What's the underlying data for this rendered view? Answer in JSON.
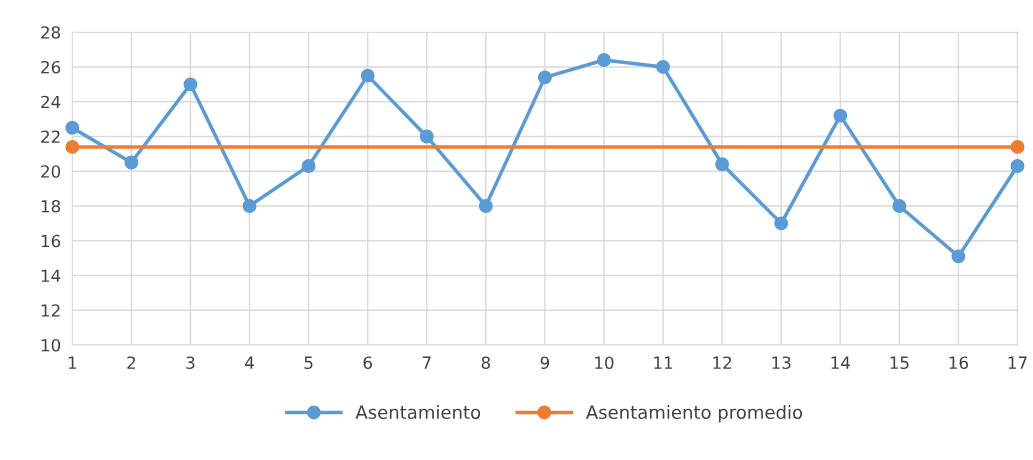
{
  "chart_data": {
    "type": "line",
    "x": [
      1,
      2,
      3,
      4,
      5,
      6,
      7,
      8,
      9,
      10,
      11,
      12,
      13,
      14,
      15,
      16,
      17
    ],
    "series": [
      {
        "name": "Asentamiento",
        "color": "#5b9bd5",
        "values": [
          22.5,
          20.5,
          25,
          18,
          20.3,
          25.5,
          22,
          18,
          25.4,
          26.4,
          26,
          20.4,
          17,
          23.2,
          18,
          15.1,
          20.3
        ]
      },
      {
        "name": "Asentamiento promedio",
        "color": "#ed7d31",
        "x": [
          1,
          17
        ],
        "values": [
          21.4,
          21.4
        ]
      }
    ],
    "xlim": [
      1,
      17
    ],
    "xticks": [
      1,
      2,
      3,
      4,
      5,
      6,
      7,
      8,
      9,
      10,
      11,
      12,
      13,
      14,
      15,
      16,
      17
    ],
    "ylim": [
      10,
      28
    ],
    "yticks": [
      10,
      12,
      14,
      16,
      18,
      20,
      22,
      24,
      26,
      28
    ],
    "grid": true,
    "legend": "bottom",
    "marker": "circle",
    "line_style": "solid"
  }
}
